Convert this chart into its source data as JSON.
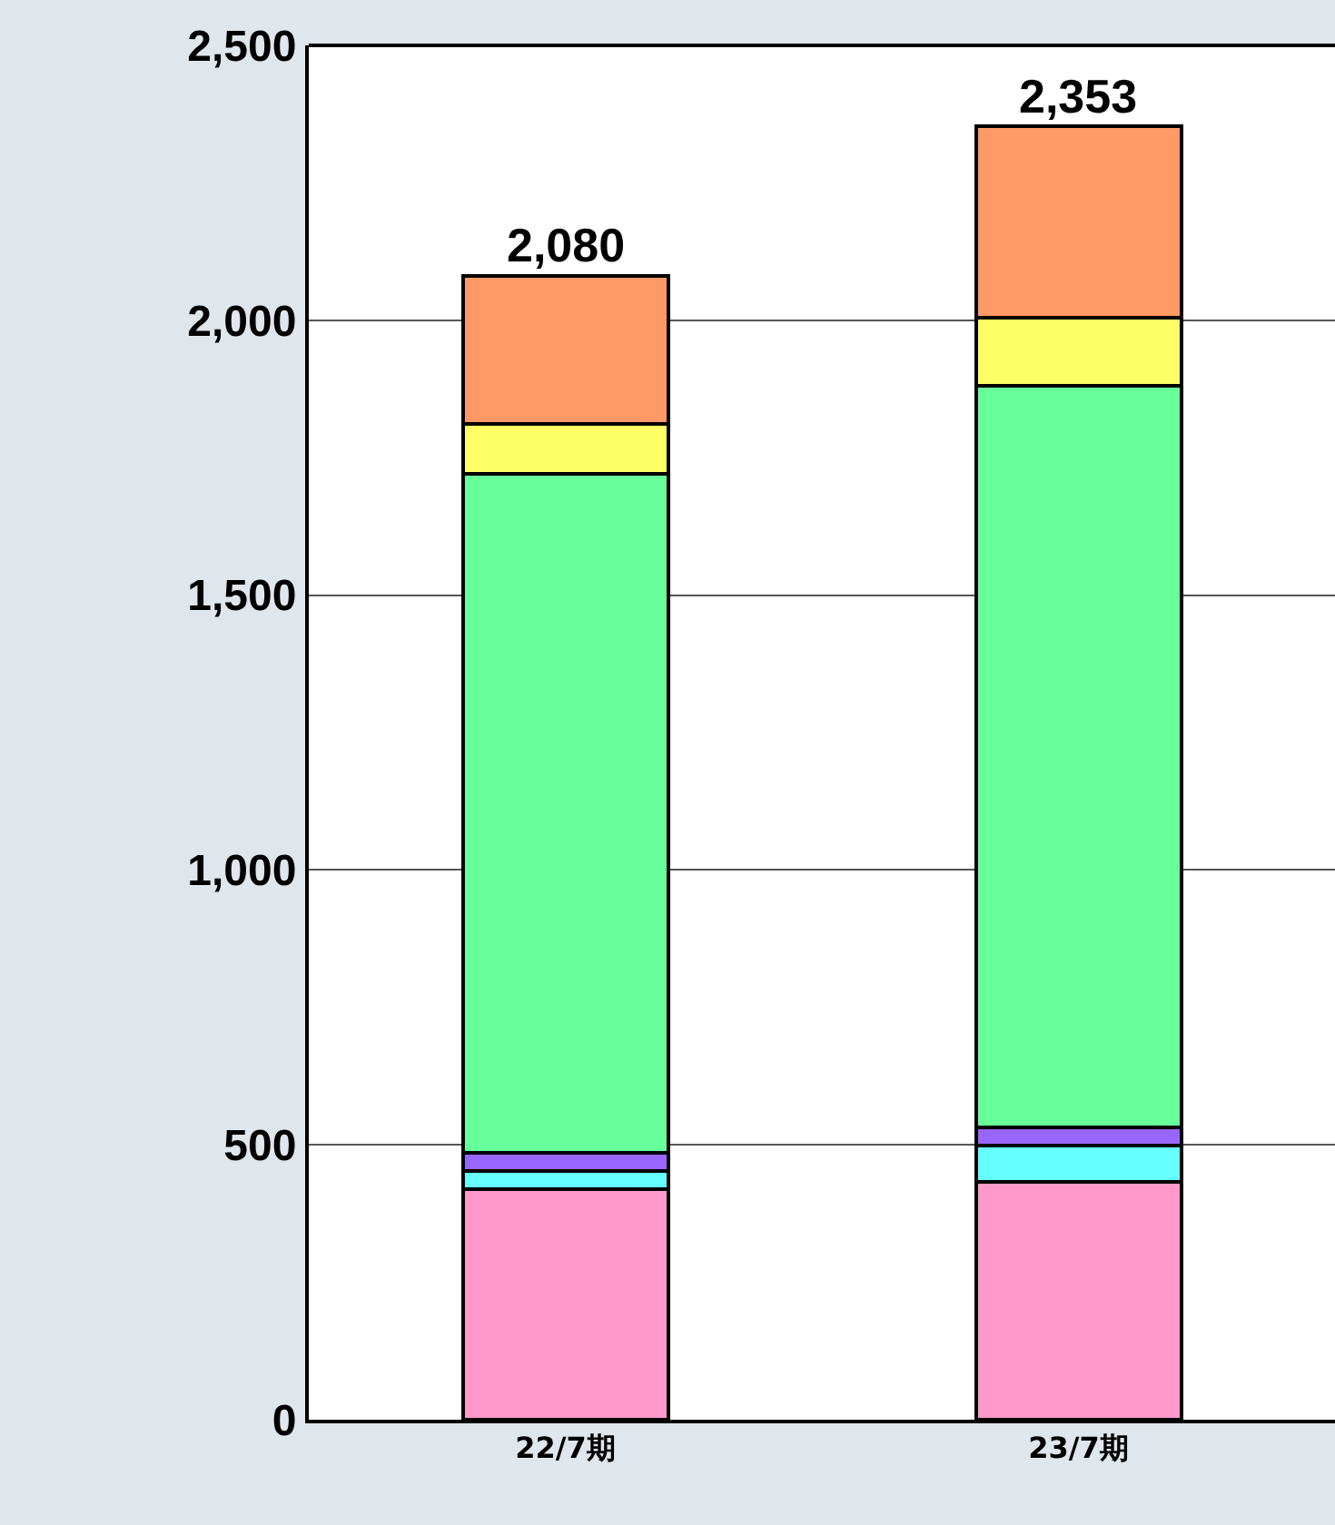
{
  "chart_data": {
    "type": "bar",
    "stacked": true,
    "categories": [
      "22/7期",
      "23/7期"
    ],
    "series": [
      {
        "color": "#ff99cc",
        "values": [
          419,
          433
        ]
      },
      {
        "color": "#66ffff",
        "values": [
          34,
          66
        ]
      },
      {
        "color": "#9966ff",
        "values": [
          32,
          32
        ]
      },
      {
        "color": "#66ff99",
        "values": [
          1235,
          1350
        ]
      },
      {
        "color": "#ffff66",
        "values": [
          92,
          123
        ]
      },
      {
        "color": "#ff9966",
        "values": [
          268,
          349
        ]
      }
    ],
    "totals": [
      "2,080",
      "2,353"
    ],
    "ylim": [
      0,
      2500
    ],
    "yticks": [
      {
        "value": 0,
        "label": "0"
      },
      {
        "value": 500,
        "label": "500"
      },
      {
        "value": 1000,
        "label": "1,000"
      },
      {
        "value": 1500,
        "label": "1,500"
      },
      {
        "value": 2000,
        "label": "2,000"
      },
      {
        "value": 2500,
        "label": "2,500"
      }
    ],
    "grid": "y"
  }
}
